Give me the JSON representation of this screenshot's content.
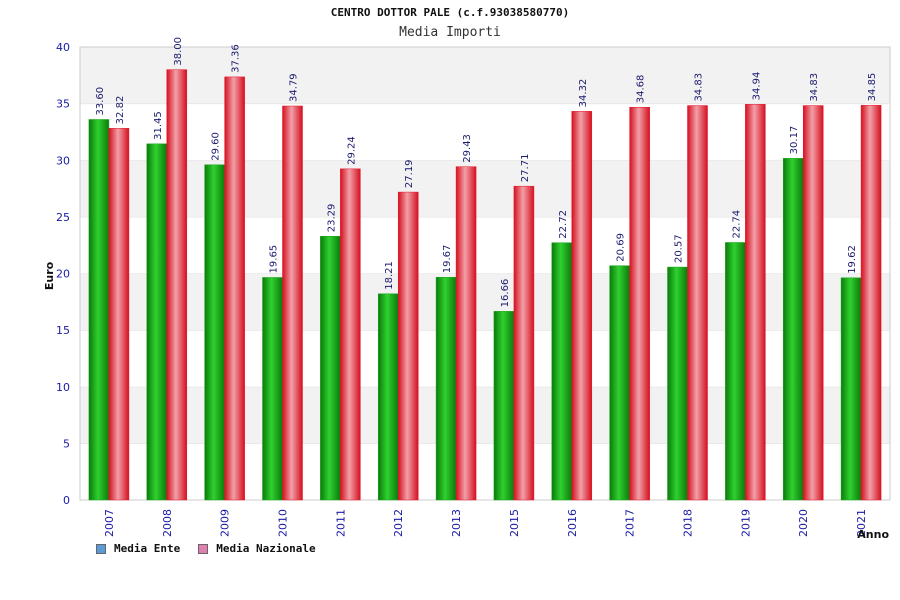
{
  "colors": {
    "ente_bar": "#1aa81a",
    "nazionale_bar": "#e8142a",
    "legend_ente": "#5b9bd5",
    "legend_nazionale": "#e07fb0",
    "axis_text": "#1a1aa6",
    "grid_band": "#f2f2f2"
  },
  "chart_data": {
    "type": "bar",
    "title": "CENTRO DOTTOR PALE (c.f.93038580770)",
    "subtitle": "Media Importi",
    "xlabel": "Anno",
    "ylabel": "Euro",
    "ylim": [
      0,
      40
    ],
    "yticks": [
      0,
      5,
      10,
      15,
      20,
      25,
      30,
      35,
      40
    ],
    "grid": true,
    "legend_position": "bottom-left",
    "categories": [
      "2007",
      "2008",
      "2009",
      "2010",
      "2011",
      "2012",
      "2013",
      "2015",
      "2016",
      "2017",
      "2018",
      "2019",
      "2020",
      "2021"
    ],
    "series": [
      {
        "name": "Media Ente",
        "values": [
          33.6,
          31.45,
          29.6,
          19.65,
          23.29,
          18.21,
          19.67,
          16.66,
          22.72,
          20.69,
          20.57,
          22.74,
          30.17,
          19.62
        ],
        "labels": [
          "33.60",
          "31.45",
          "29.60",
          "19.65",
          "23.29",
          "18.21",
          "19.67",
          "16.66",
          "22.72",
          "20.69",
          "20.57",
          "22.74",
          "30.17",
          "19.62"
        ]
      },
      {
        "name": "Media Nazionale",
        "values": [
          32.82,
          38.0,
          37.36,
          34.79,
          29.24,
          27.19,
          29.43,
          27.71,
          34.32,
          34.68,
          34.83,
          34.94,
          34.83,
          34.85
        ],
        "labels": [
          "32.82",
          "38.00",
          "37.36",
          "34.79",
          "29.24",
          "27.19",
          "29.43",
          "27.71",
          "34.32",
          "34.68",
          "34.83",
          "34.94",
          "34.83",
          "34.85"
        ]
      }
    ]
  }
}
